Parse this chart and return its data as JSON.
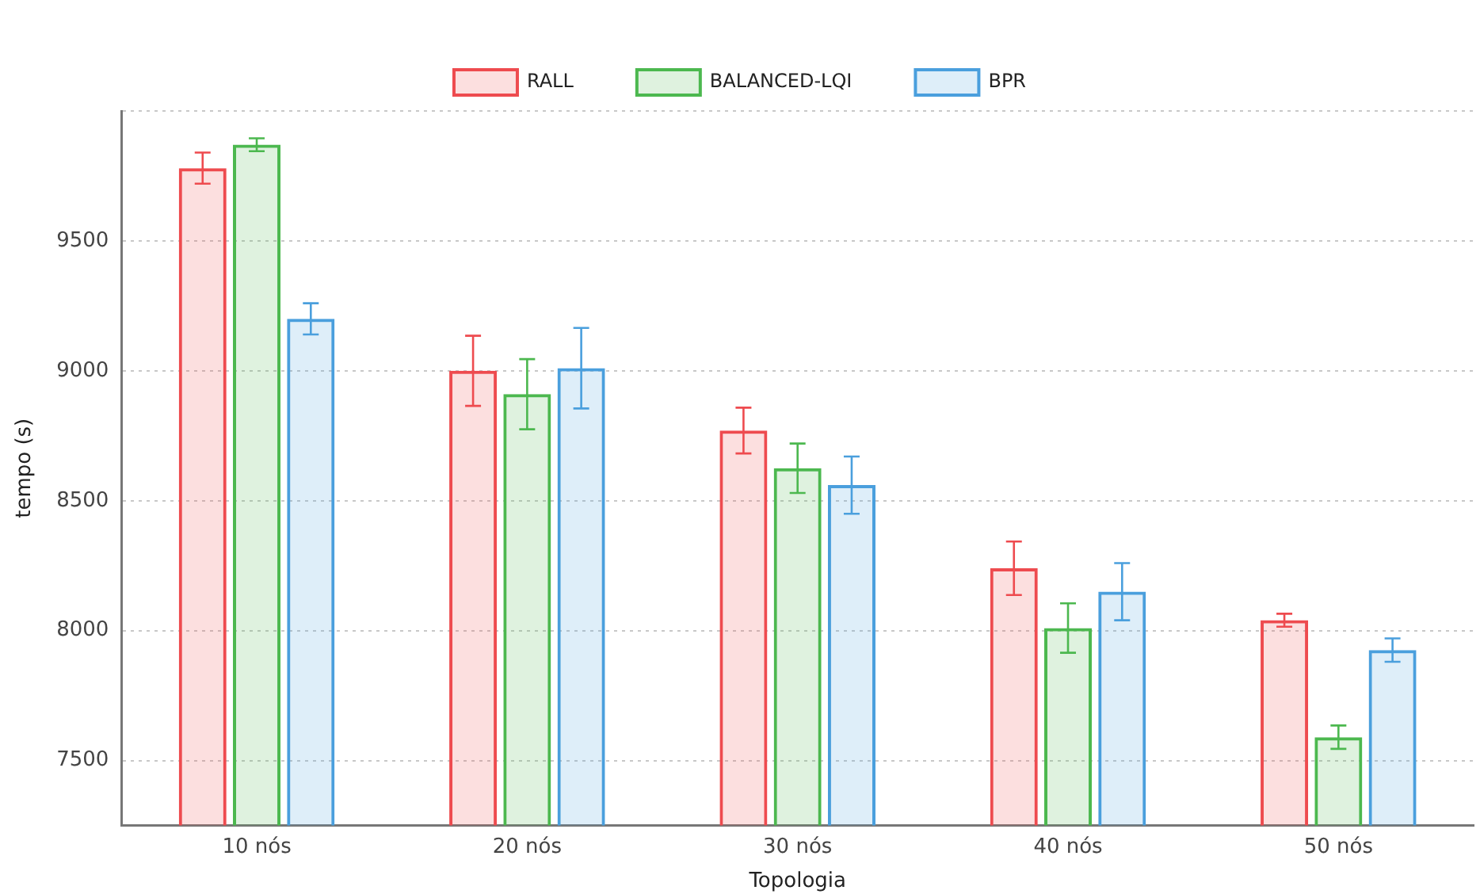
{
  "chart_data": {
    "type": "bar",
    "xlabel": "Topologia",
    "ylabel": "tempo (s)",
    "categories": [
      "10 nós",
      "20 nós",
      "30 nós",
      "40 nós",
      "50 nós"
    ],
    "series": [
      {
        "name": "RALL",
        "color": "#ee4b4f",
        "values": [
          9780,
          9000,
          8770,
          8240,
          8040
        ],
        "errors": [
          60,
          135,
          88,
          103,
          25
        ]
      },
      {
        "name": "BALANCED-LQI",
        "color": "#4cb84f",
        "values": [
          9870,
          8910,
          8625,
          8010,
          7590
        ],
        "errors": [
          25,
          135,
          95,
          95,
          45
        ]
      },
      {
        "name": "BPR",
        "color": "#4a9fdd",
        "values": [
          9200,
          9010,
          8560,
          8150,
          7925
        ],
        "errors": [
          60,
          155,
          110,
          110,
          45
        ]
      }
    ],
    "ylim": [
      7250,
      10000
    ],
    "yticks": [
      7500,
      8000,
      8500,
      9000,
      9500,
      {
        "value": 10000,
        "label": null
      }
    ],
    "grid": "y",
    "legend": "top"
  }
}
